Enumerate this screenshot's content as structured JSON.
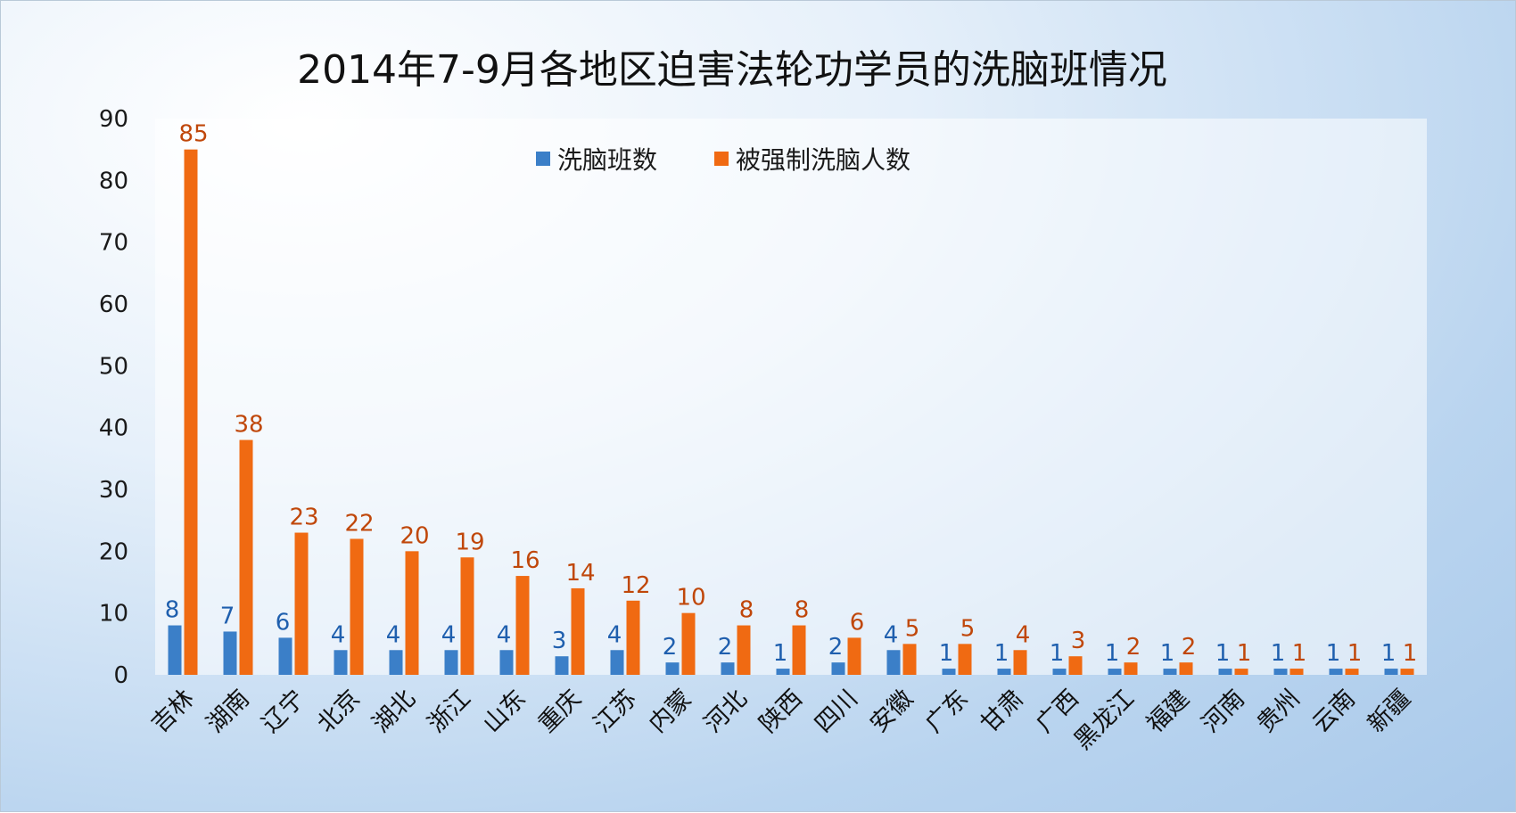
{
  "chart_data": {
    "type": "bar",
    "title": "2014年7-9月各地区迫害法轮功学员的洗脑班情况",
    "xlabel": "",
    "ylabel": "",
    "ylim": [
      0,
      90
    ],
    "yticks": [
      0,
      10,
      20,
      30,
      40,
      50,
      60,
      70,
      80,
      90
    ],
    "grid": false,
    "legend": "top-center",
    "data_labels": true,
    "categories": [
      "吉林",
      "湖南",
      "辽宁",
      "北京",
      "湖北",
      "浙江",
      "山东",
      "重庆",
      "江苏",
      "内蒙",
      "河北",
      "陕西",
      "四川",
      "安徽",
      "广东",
      "甘肃",
      "广西",
      "黑龙江",
      "福建",
      "河南",
      "贵州",
      "云南",
      "新疆"
    ],
    "series": [
      {
        "name": "洗脑班数",
        "color": "#3b7fc8",
        "label_color": "#1f5fae",
        "values": [
          8,
          7,
          6,
          4,
          4,
          4,
          4,
          3,
          4,
          2,
          2,
          1,
          2,
          4,
          1,
          1,
          1,
          1,
          1,
          1,
          1,
          1,
          1
        ]
      },
      {
        "name": "被强制洗脑人数",
        "color": "#f06a12",
        "label_color": "#c0470a",
        "values": [
          85,
          38,
          23,
          22,
          20,
          19,
          16,
          14,
          12,
          10,
          8,
          8,
          6,
          5,
          5,
          4,
          3,
          2,
          2,
          1,
          1,
          1,
          1
        ]
      }
    ]
  }
}
